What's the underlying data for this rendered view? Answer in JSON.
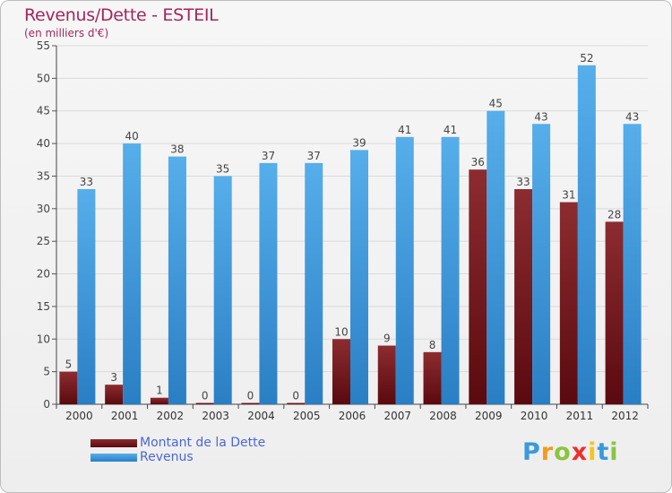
{
  "chart_data": {
    "type": "bar",
    "title": "Revenus/Dette - ESTEIL",
    "subtitle": "(en milliers d'€)",
    "categories": [
      "2000",
      "2001",
      "2002",
      "2003",
      "2004",
      "2005",
      "2006",
      "2007",
      "2008",
      "2009",
      "2010",
      "2011",
      "2012"
    ],
    "series": [
      {
        "name": "Montant de la Dette",
        "color": "#7a1a1f",
        "values": [
          5,
          3,
          1,
          0,
          0,
          0,
          10,
          9,
          8,
          36,
          33,
          31,
          28
        ]
      },
      {
        "name": "Revenus",
        "color": "#3d9be0",
        "values": [
          33,
          40,
          38,
          35,
          37,
          37,
          39,
          41,
          41,
          45,
          43,
          52,
          43
        ]
      }
    ],
    "ylim": [
      0,
      55
    ],
    "yticks": [
      0,
      5,
      10,
      15,
      20,
      25,
      30,
      35,
      40,
      45,
      50,
      55
    ],
    "grid": true,
    "legend_position": "bottom-left"
  },
  "logo": {
    "letters": [
      "P",
      "r",
      "o",
      "x",
      "i",
      "t",
      "i"
    ],
    "colors": [
      "#3a9ad9",
      "#f39a1f",
      "#8bc43f",
      "#e8312f",
      "#f7c51c",
      "#3a9ad9",
      "#8bc43f"
    ]
  }
}
